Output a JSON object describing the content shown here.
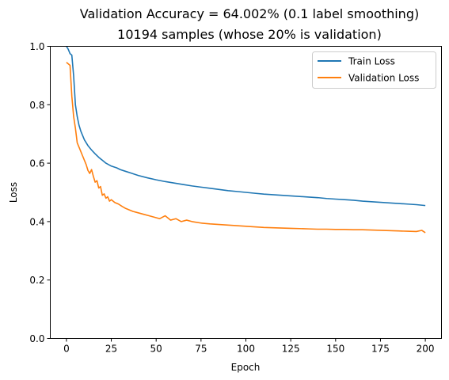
{
  "chart_data": {
    "type": "line",
    "title": "Validation Accuracy = 64.002% (0.1 label smoothing)",
    "subtitle": "10194 samples (whose 20% is validation)",
    "xlabel": "Epoch",
    "ylabel": "Loss",
    "xlim": [
      -9,
      209
    ],
    "ylim": [
      0.0,
      1.0
    ],
    "xticks": [
      0,
      25,
      50,
      75,
      100,
      125,
      150,
      175,
      200
    ],
    "yticks": [
      0.0,
      0.2,
      0.4,
      0.6,
      0.8,
      1.0
    ],
    "xtick_labels": [
      "0",
      "25",
      "50",
      "75",
      "100",
      "125",
      "150",
      "175",
      "200"
    ],
    "ytick_labels": [
      "0.0",
      "0.2",
      "0.4",
      "0.6",
      "0.8",
      "1.0"
    ],
    "grid": false,
    "legend_position": "top-right",
    "series": [
      {
        "name": "Train Loss",
        "color": "#1f77b4",
        "x": [
          0,
          1,
          2,
          3,
          4,
          5,
          6,
          7,
          8,
          9,
          10,
          12,
          14,
          16,
          18,
          20,
          22,
          25,
          28,
          30,
          33,
          36,
          40,
          45,
          50,
          55,
          60,
          65,
          70,
          75,
          80,
          85,
          90,
          95,
          100,
          105,
          110,
          115,
          120,
          125,
          130,
          135,
          140,
          145,
          150,
          155,
          160,
          165,
          170,
          175,
          180,
          185,
          190,
          195,
          200
        ],
        "y": [
          1.0,
          0.99,
          0.975,
          0.97,
          0.9,
          0.8,
          0.76,
          0.73,
          0.71,
          0.695,
          0.68,
          0.66,
          0.645,
          0.632,
          0.62,
          0.61,
          0.6,
          0.59,
          0.584,
          0.578,
          0.572,
          0.566,
          0.558,
          0.55,
          0.543,
          0.537,
          0.532,
          0.527,
          0.522,
          0.518,
          0.514,
          0.51,
          0.506,
          0.503,
          0.5,
          0.497,
          0.494,
          0.492,
          0.49,
          0.488,
          0.486,
          0.484,
          0.482,
          0.479,
          0.477,
          0.475,
          0.473,
          0.47,
          0.468,
          0.466,
          0.464,
          0.462,
          0.46,
          0.458,
          0.455
        ]
      },
      {
        "name": "Validation Loss",
        "color": "#ff7f0e",
        "x": [
          0,
          1,
          2,
          3,
          4,
          5,
          6,
          7,
          8,
          9,
          10,
          11,
          12,
          13,
          14,
          15,
          16,
          17,
          18,
          19,
          20,
          21,
          22,
          23,
          24,
          25,
          27,
          29,
          31,
          33,
          35,
          37,
          40,
          43,
          46,
          49,
          52,
          55,
          58,
          61,
          64,
          67,
          70,
          75,
          80,
          85,
          90,
          95,
          100,
          105,
          110,
          115,
          120,
          125,
          130,
          135,
          140,
          145,
          150,
          155,
          160,
          165,
          170,
          175,
          180,
          185,
          190,
          195,
          198,
          200
        ],
        "y": [
          0.945,
          0.94,
          0.935,
          0.83,
          0.76,
          0.72,
          0.67,
          0.655,
          0.64,
          0.625,
          0.61,
          0.595,
          0.575,
          0.565,
          0.578,
          0.555,
          0.535,
          0.54,
          0.515,
          0.52,
          0.49,
          0.495,
          0.48,
          0.485,
          0.47,
          0.475,
          0.465,
          0.46,
          0.452,
          0.445,
          0.44,
          0.435,
          0.43,
          0.425,
          0.42,
          0.415,
          0.41,
          0.42,
          0.405,
          0.41,
          0.4,
          0.405,
          0.4,
          0.395,
          0.392,
          0.39,
          0.388,
          0.386,
          0.384,
          0.382,
          0.38,
          0.379,
          0.378,
          0.377,
          0.376,
          0.375,
          0.374,
          0.374,
          0.373,
          0.373,
          0.372,
          0.372,
          0.371,
          0.37,
          0.369,
          0.368,
          0.367,
          0.366,
          0.37,
          0.362
        ]
      }
    ]
  }
}
